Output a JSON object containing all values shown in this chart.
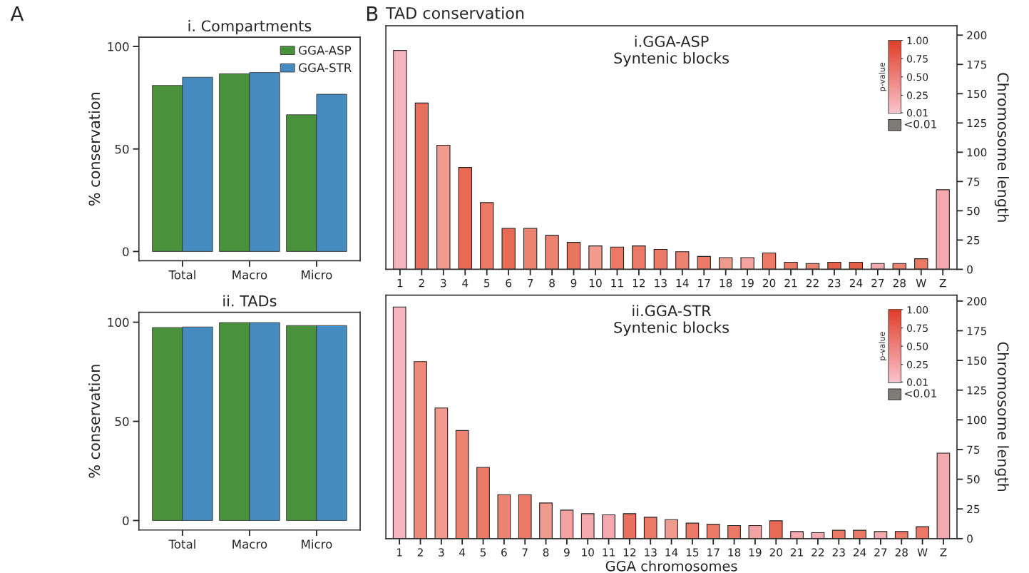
{
  "chart_data": [
    {
      "type": "bar",
      "title": "i. Compartments",
      "ylabel": "% conservation",
      "annotations": [
        "A"
      ],
      "categories": [
        "Total",
        "Macro",
        "Micro"
      ],
      "series": [
        {
          "name": "GGA-ASP",
          "color": "#4a913c",
          "values": [
            81,
            86.7,
            66.7
          ]
        },
        {
          "name": "GGA-STR",
          "color": "#468bbf",
          "values": [
            85,
            87.3,
            76.7
          ]
        }
      ],
      "ylim": [
        -4.5,
        104.5
      ],
      "yticks": [
        0,
        50,
        100
      ],
      "legend": "top right",
      "grid": false
    },
    {
      "type": "bar",
      "title": "ii. TADs",
      "ylabel": "% conservation",
      "categories": [
        "Total",
        "Macro",
        "Micro"
      ],
      "series": [
        {
          "color": "#4a913c",
          "values": [
            97.3,
            99.8,
            98.3
          ]
        },
        {
          "color": "#468bbf",
          "values": [
            97.6,
            99.8,
            98.3
          ]
        }
      ],
      "ylim": [
        -4.8,
        105
      ],
      "yticks": [
        0,
        50,
        100
      ],
      "grid": false
    },
    {
      "type": "bar",
      "title": "i.GGA-ASP\nSyntenic blocks",
      "ylabel": "Chromosome length",
      "annotations": [
        "B",
        "TAD conservation",
        "<0.01"
      ],
      "clabel": "p-value",
      "clim": [
        0,
        1
      ],
      "cticks": [
        {
          "value": 0.01,
          "label": "0.01"
        },
        {
          "value": 0.25,
          "label": "0.25"
        },
        {
          "value": 0.5,
          "label": "0.50"
        },
        {
          "value": 0.75,
          "label": "0.75"
        },
        {
          "value": 1,
          "label": "1.00"
        }
      ],
      "categories": [
        "1",
        "2",
        "3",
        "4",
        "5",
        "6",
        "7",
        "8",
        "9",
        "10",
        "11",
        "12",
        "13",
        "14",
        "17",
        "18",
        "19",
        "20",
        "21",
        "22",
        "23",
        "24",
        "27",
        "28",
        "W",
        "Z"
      ],
      "values": [
        187,
        142,
        106,
        87,
        57,
        35,
        35,
        29,
        23,
        20,
        19,
        20,
        17,
        15,
        11,
        10,
        10,
        14,
        6,
        5,
        6,
        6,
        5,
        5,
        9,
        68
      ],
      "colors": [
        "#f7b6bf",
        "#e8705e",
        "#f19a8e",
        "#e86a55",
        "#ec7866",
        "#e86a55",
        "#ec8270",
        "#ec8270",
        "#e87560",
        "#f19a8e",
        "#ec7866",
        "#ec7866",
        "#ec7866",
        "#ec8270",
        "#ec7866",
        "#f19a8e",
        "#f3a2a2",
        "#ec7866",
        "#ec7866",
        "#ec8270",
        "#e4604a",
        "#e4604a",
        "#f3a9ae",
        "#ec8270",
        "#ec7866",
        "#f3a9ae"
      ],
      "ylim": [
        0,
        208
      ],
      "yticks": [
        0,
        25,
        50,
        75,
        100,
        125,
        150,
        175,
        200
      ],
      "grid": false
    },
    {
      "type": "bar",
      "title": "ii.GGA-STR\nSyntenic blocks",
      "xlabel": "GGA chromosomes",
      "ylabel": "Chromosome length",
      "annotations": [
        "<0.01"
      ],
      "clabel": "p-value",
      "clim": [
        0,
        1
      ],
      "cticks": [
        {
          "value": 0.01,
          "label": "0.01"
        },
        {
          "value": 0.25,
          "label": "0.25"
        },
        {
          "value": 0.5,
          "label": "0.50"
        },
        {
          "value": 0.75,
          "label": "0.75"
        },
        {
          "value": 1,
          "label": "1.00"
        }
      ],
      "categories": [
        "1",
        "2",
        "3",
        "4",
        "5",
        "6",
        "7",
        "8",
        "9",
        "10",
        "11",
        "12",
        "13",
        "14",
        "15",
        "17",
        "18",
        "19",
        "20",
        "21",
        "22",
        "23",
        "24",
        "27",
        "28",
        "W",
        "Z"
      ],
      "values": [
        195,
        149,
        110,
        91,
        60,
        37,
        37,
        30,
        24,
        21,
        20,
        21,
        18,
        16,
        13,
        12,
        11,
        11,
        15,
        6,
        5,
        7,
        7,
        6,
        6,
        10,
        72
      ],
      "colors": [
        "#f7b6bf",
        "#ee8a7a",
        "#f19a8e",
        "#ec8270",
        "#ec7866",
        "#ec8270",
        "#ec7866",
        "#f19a8e",
        "#f3a2a2",
        "#f3a9ae",
        "#f3a9ae",
        "#e8705e",
        "#ec7866",
        "#f19a8e",
        "#ec7866",
        "#ec7866",
        "#ec7866",
        "#f3a2a2",
        "#e86a55",
        "#f3a9ae",
        "#f3a9ae",
        "#ec7866",
        "#ec7866",
        "#f3a9ae",
        "#ec7866",
        "#ec7866",
        "#f3a9ae"
      ],
      "ylim": [
        0,
        205
      ],
      "yticks": [
        0,
        25,
        50,
        75,
        100,
        125,
        150,
        175,
        200
      ],
      "grid": false
    }
  ]
}
